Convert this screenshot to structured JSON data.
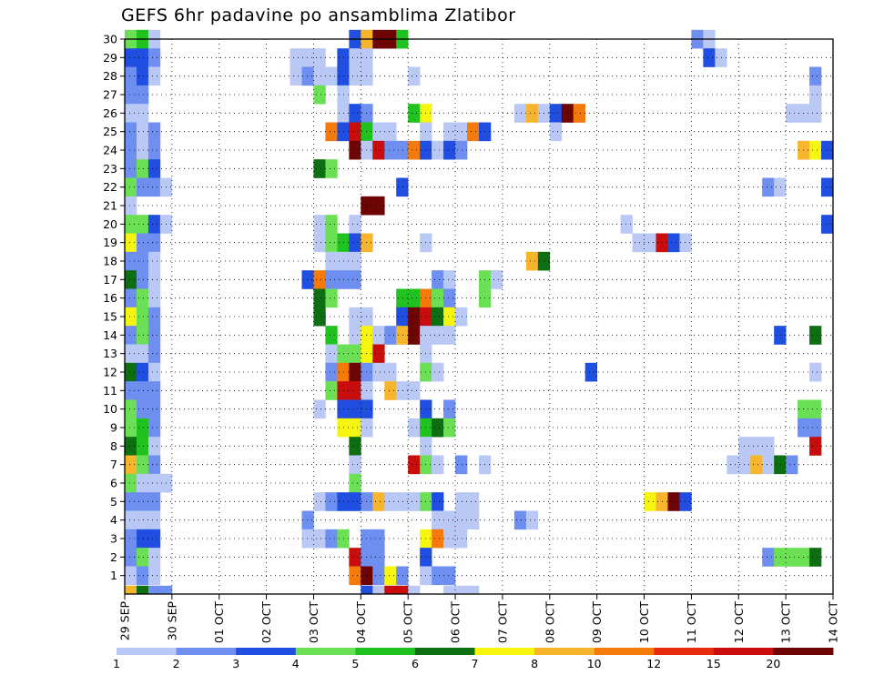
{
  "chart_data": {
    "type": "heatmap",
    "title": "GEFS 6hr padavine po ansamblima Zlatibor",
    "xlabel": "",
    "ylabel": "",
    "x_ticks": [
      "29 SEP",
      "30 SEP",
      "01 OCT",
      "02 OCT",
      "03 OCT",
      "04 OCT",
      "05 OCT",
      "06 OCT",
      "07 OCT",
      "08 OCT",
      "09 OCT",
      "10 OCT",
      "11 OCT",
      "12 OCT",
      "13 OCT",
      "14 OCT"
    ],
    "y_ticks": [
      1,
      2,
      3,
      4,
      5,
      6,
      7,
      8,
      9,
      10,
      11,
      12,
      13,
      14,
      15,
      16,
      17,
      18,
      19,
      20,
      21,
      22,
      23,
      24,
      25,
      26,
      27,
      28,
      29,
      30
    ],
    "ylim": [
      0,
      30
    ],
    "time_step_hours": 6,
    "grid": true,
    "legend_placement": "bottom",
    "colorbar": {
      "labels": [
        "1",
        "2",
        "3",
        "4",
        "5",
        "6",
        "7",
        "8",
        "10",
        "12",
        "15",
        "20"
      ],
      "colors": [
        "#b9c8f5",
        "#6e8ff0",
        "#1f4ee0",
        "#6ce055",
        "#1fc21f",
        "#0d6e12",
        "#f5f50f",
        "#f7b52e",
        "#f57a0c",
        "#e62d10",
        "#c90d0d",
        "#6e0505"
      ]
    },
    "cells": [
      [
        0,
        30,
        4
      ],
      [
        0,
        29,
        3
      ],
      [
        0,
        28,
        2
      ],
      [
        0,
        27,
        2
      ],
      [
        0,
        26,
        1
      ],
      [
        0,
        25,
        2
      ],
      [
        0,
        24,
        2
      ],
      [
        0,
        23,
        2
      ],
      [
        0,
        22,
        4
      ],
      [
        0,
        21,
        1
      ],
      [
        0,
        20,
        4
      ],
      [
        0,
        19,
        7
      ],
      [
        0,
        18,
        2
      ],
      [
        0,
        17,
        6
      ],
      [
        0,
        16,
        2
      ],
      [
        0,
        15,
        7
      ],
      [
        0,
        14,
        2
      ],
      [
        0,
        13,
        1
      ],
      [
        0,
        12,
        6
      ],
      [
        0,
        11,
        2
      ],
      [
        0,
        10,
        4
      ],
      [
        0,
        9,
        4
      ],
      [
        0,
        8,
        6
      ],
      [
        0,
        7,
        8
      ],
      [
        0,
        6,
        4
      ],
      [
        0,
        5,
        2
      ],
      [
        0,
        4,
        1
      ],
      [
        0,
        3,
        2
      ],
      [
        0,
        2,
        2
      ],
      [
        0,
        1,
        1
      ],
      [
        0,
        0,
        8
      ],
      [
        1,
        30,
        5
      ],
      [
        1,
        29,
        3
      ],
      [
        1,
        28,
        3
      ],
      [
        1,
        27,
        2
      ],
      [
        1,
        26,
        1
      ],
      [
        1,
        25,
        1
      ],
      [
        1,
        24,
        1
      ],
      [
        1,
        23,
        4
      ],
      [
        1,
        22,
        2
      ],
      [
        1,
        20,
        4
      ],
      [
        1,
        19,
        2
      ],
      [
        1,
        18,
        2
      ],
      [
        1,
        17,
        2
      ],
      [
        1,
        16,
        4
      ],
      [
        1,
        15,
        4
      ],
      [
        1,
        14,
        4
      ],
      [
        1,
        13,
        1
      ],
      [
        1,
        12,
        3
      ],
      [
        1,
        11,
        2
      ],
      [
        1,
        10,
        2
      ],
      [
        1,
        9,
        5
      ],
      [
        1,
        8,
        5
      ],
      [
        1,
        7,
        4
      ],
      [
        1,
        6,
        1
      ],
      [
        1,
        5,
        2
      ],
      [
        1,
        4,
        1
      ],
      [
        1,
        3,
        3
      ],
      [
        1,
        2,
        4
      ],
      [
        1,
        1,
        2
      ],
      [
        1,
        0,
        6
      ],
      [
        2,
        30,
        1
      ],
      [
        2,
        29,
        2
      ],
      [
        2,
        28,
        1
      ],
      [
        2,
        25,
        2
      ],
      [
        2,
        24,
        2
      ],
      [
        2,
        23,
        3
      ],
      [
        2,
        22,
        2
      ],
      [
        2,
        20,
        3
      ],
      [
        2,
        19,
        2
      ],
      [
        2,
        18,
        1
      ],
      [
        2,
        17,
        1
      ],
      [
        2,
        16,
        1
      ],
      [
        2,
        15,
        2
      ],
      [
        2,
        14,
        2
      ],
      [
        2,
        13,
        2
      ],
      [
        2,
        12,
        1
      ],
      [
        2,
        11,
        2
      ],
      [
        2,
        10,
        2
      ],
      [
        2,
        9,
        2
      ],
      [
        2,
        8,
        1
      ],
      [
        2,
        7,
        2
      ],
      [
        2,
        6,
        1
      ],
      [
        2,
        5,
        2
      ],
      [
        2,
        4,
        1
      ],
      [
        2,
        3,
        3
      ],
      [
        2,
        2,
        1
      ],
      [
        2,
        1,
        1
      ],
      [
        2,
        0,
        2
      ],
      [
        3,
        22,
        1
      ],
      [
        3,
        20,
        1
      ],
      [
        3,
        6,
        1
      ],
      [
        3,
        0,
        2
      ],
      [
        14,
        29,
        1
      ],
      [
        14,
        28,
        1
      ],
      [
        15,
        29,
        1
      ],
      [
        15,
        28,
        2
      ],
      [
        15,
        17,
        3
      ],
      [
        15,
        4,
        2
      ],
      [
        15,
        3,
        1
      ],
      [
        16,
        29,
        1
      ],
      [
        16,
        28,
        1
      ],
      [
        16,
        27,
        4
      ],
      [
        16,
        23,
        6
      ],
      [
        16,
        20,
        1
      ],
      [
        16,
        19,
        1
      ],
      [
        16,
        17,
        9
      ],
      [
        16,
        16,
        6
      ],
      [
        16,
        15,
        6
      ],
      [
        16,
        10,
        1
      ],
      [
        16,
        5,
        1
      ],
      [
        16,
        3,
        1
      ],
      [
        17,
        28,
        1
      ],
      [
        17,
        25,
        9
      ],
      [
        17,
        23,
        4
      ],
      [
        17,
        20,
        4
      ],
      [
        17,
        19,
        4
      ],
      [
        17,
        18,
        1
      ],
      [
        17,
        17,
        2
      ],
      [
        17,
        16,
        4
      ],
      [
        17,
        14,
        5
      ],
      [
        17,
        13,
        1
      ],
      [
        17,
        12,
        2
      ],
      [
        17,
        11,
        4
      ],
      [
        17,
        5,
        2
      ],
      [
        17,
        3,
        2
      ],
      [
        18,
        29,
        3
      ],
      [
        18,
        28,
        3
      ],
      [
        18,
        27,
        1
      ],
      [
        18,
        26,
        1
      ],
      [
        18,
        25,
        3
      ],
      [
        18,
        19,
        5
      ],
      [
        18,
        18,
        1
      ],
      [
        18,
        17,
        2
      ],
      [
        18,
        13,
        4
      ],
      [
        18,
        12,
        9
      ],
      [
        18,
        11,
        11
      ],
      [
        18,
        10,
        3
      ],
      [
        18,
        9,
        7
      ],
      [
        18,
        5,
        3
      ],
      [
        18,
        3,
        4
      ],
      [
        19,
        30,
        3
      ],
      [
        19,
        29,
        1
      ],
      [
        19,
        28,
        1
      ],
      [
        19,
        26,
        3
      ],
      [
        19,
        25,
        11
      ],
      [
        19,
        24,
        12
      ],
      [
        19,
        20,
        1
      ],
      [
        19,
        19,
        3
      ],
      [
        19,
        18,
        1
      ],
      [
        19,
        17,
        2
      ],
      [
        19,
        15,
        1
      ],
      [
        19,
        14,
        1
      ],
      [
        19,
        13,
        4
      ],
      [
        19,
        12,
        12
      ],
      [
        19,
        11,
        11
      ],
      [
        19,
        10,
        3
      ],
      [
        19,
        9,
        7
      ],
      [
        19,
        8,
        6
      ],
      [
        19,
        7,
        1
      ],
      [
        19,
        6,
        4
      ],
      [
        19,
        5,
        3
      ],
      [
        19,
        2,
        11
      ],
      [
        19,
        1,
        9
      ],
      [
        20,
        30,
        8
      ],
      [
        20,
        29,
        1
      ],
      [
        20,
        28,
        1
      ],
      [
        20,
        26,
        2
      ],
      [
        20,
        25,
        5
      ],
      [
        20,
        24,
        1
      ],
      [
        20,
        21,
        12
      ],
      [
        20,
        19,
        8
      ],
      [
        20,
        15,
        1
      ],
      [
        20,
        14,
        7
      ],
      [
        20,
        13,
        7
      ],
      [
        20,
        12,
        2
      ],
      [
        20,
        11,
        1
      ],
      [
        20,
        10,
        3
      ],
      [
        20,
        9,
        1
      ],
      [
        20,
        5,
        2
      ],
      [
        20,
        3,
        2
      ],
      [
        20,
        2,
        2
      ],
      [
        20,
        1,
        12
      ],
      [
        20,
        0,
        3
      ],
      [
        21,
        30,
        12
      ],
      [
        21,
        25,
        1
      ],
      [
        21,
        24,
        11
      ],
      [
        21,
        21,
        12
      ],
      [
        21,
        14,
        1
      ],
      [
        21,
        13,
        11
      ],
      [
        21,
        12,
        1
      ],
      [
        21,
        5,
        8
      ],
      [
        21,
        3,
        2
      ],
      [
        21,
        2,
        2
      ],
      [
        21,
        1,
        2
      ],
      [
        21,
        0,
        1
      ],
      [
        22,
        30,
        12
      ],
      [
        22,
        25,
        1
      ],
      [
        22,
        24,
        2
      ],
      [
        22,
        14,
        2
      ],
      [
        22,
        12,
        1
      ],
      [
        22,
        11,
        8
      ],
      [
        22,
        5,
        1
      ],
      [
        22,
        1,
        7
      ],
      [
        22,
        0,
        11
      ],
      [
        23,
        30,
        5
      ],
      [
        23,
        24,
        2
      ],
      [
        23,
        22,
        3
      ],
      [
        23,
        16,
        5
      ],
      [
        23,
        15,
        3
      ],
      [
        23,
        14,
        8
      ],
      [
        23,
        11,
        1
      ],
      [
        23,
        5,
        1
      ],
      [
        23,
        1,
        2
      ],
      [
        23,
        0,
        11
      ],
      [
        24,
        28,
        1
      ],
      [
        24,
        26,
        5
      ],
      [
        24,
        24,
        9
      ],
      [
        24,
        16,
        5
      ],
      [
        24,
        15,
        12
      ],
      [
        24,
        14,
        12
      ],
      [
        24,
        11,
        1
      ],
      [
        24,
        9,
        1
      ],
      [
        24,
        7,
        11
      ],
      [
        24,
        5,
        1
      ],
      [
        24,
        0,
        1
      ],
      [
        25,
        26,
        7
      ],
      [
        25,
        25,
        1
      ],
      [
        25,
        24,
        3
      ],
      [
        25,
        19,
        1
      ],
      [
        25,
        16,
        9
      ],
      [
        25,
        15,
        11
      ],
      [
        25,
        14,
        1
      ],
      [
        25,
        13,
        1
      ],
      [
        25,
        12,
        4
      ],
      [
        25,
        10,
        3
      ],
      [
        25,
        9,
        5
      ],
      [
        25,
        8,
        1
      ],
      [
        25,
        7,
        4
      ],
      [
        25,
        5,
        4
      ],
      [
        25,
        3,
        7
      ],
      [
        25,
        2,
        3
      ],
      [
        25,
        1,
        1
      ],
      [
        26,
        24,
        1
      ],
      [
        26,
        17,
        2
      ],
      [
        26,
        16,
        4
      ],
      [
        26,
        15,
        6
      ],
      [
        26,
        14,
        1
      ],
      [
        26,
        12,
        1
      ],
      [
        26,
        9,
        6
      ],
      [
        26,
        7,
        1
      ],
      [
        26,
        5,
        3
      ],
      [
        26,
        4,
        1
      ],
      [
        26,
        3,
        9
      ],
      [
        26,
        1,
        2
      ],
      [
        27,
        25,
        1
      ],
      [
        27,
        24,
        3
      ],
      [
        27,
        17,
        1
      ],
      [
        27,
        16,
        2
      ],
      [
        27,
        15,
        7
      ],
      [
        27,
        14,
        1
      ],
      [
        27,
        10,
        2
      ],
      [
        27,
        9,
        4
      ],
      [
        27,
        4,
        1
      ],
      [
        27,
        3,
        1
      ],
      [
        27,
        1,
        2
      ],
      [
        27,
        0,
        1
      ],
      [
        28,
        25,
        1
      ],
      [
        28,
        24,
        2
      ],
      [
        28,
        15,
        1
      ],
      [
        28,
        7,
        2
      ],
      [
        28,
        5,
        1
      ],
      [
        28,
        4,
        1
      ],
      [
        28,
        3,
        1
      ],
      [
        28,
        0,
        1
      ],
      [
        29,
        25,
        9
      ],
      [
        29,
        5,
        1
      ],
      [
        29,
        4,
        1
      ],
      [
        29,
        0,
        1
      ],
      [
        30,
        25,
        3
      ],
      [
        30,
        17,
        4
      ],
      [
        30,
        16,
        4
      ],
      [
        30,
        7,
        1
      ],
      [
        31,
        17,
        1
      ],
      [
        33,
        26,
        1
      ],
      [
        33,
        4,
        2
      ],
      [
        34,
        26,
        8
      ],
      [
        34,
        18,
        8
      ],
      [
        34,
        4,
        1
      ],
      [
        35,
        26,
        1
      ],
      [
        35,
        18,
        6
      ],
      [
        36,
        26,
        3
      ],
      [
        36,
        25,
        1
      ],
      [
        37,
        26,
        12
      ],
      [
        38,
        26,
        9
      ],
      [
        39,
        12,
        3
      ],
      [
        42,
        20,
        1
      ],
      [
        43,
        19,
        1
      ],
      [
        44,
        19,
        1
      ],
      [
        44,
        5,
        7
      ],
      [
        45,
        19,
        11
      ],
      [
        45,
        5,
        8
      ],
      [
        46,
        19,
        3
      ],
      [
        46,
        5,
        12
      ],
      [
        47,
        19,
        1
      ],
      [
        47,
        5,
        3
      ],
      [
        48,
        30,
        2
      ],
      [
        49,
        30,
        1
      ],
      [
        49,
        29,
        3
      ],
      [
        50,
        29,
        1
      ],
      [
        51,
        7,
        1
      ],
      [
        52,
        8,
        1
      ],
      [
        52,
        7,
        1
      ],
      [
        53,
        8,
        1
      ],
      [
        53,
        7,
        8
      ],
      [
        54,
        22,
        2
      ],
      [
        54,
        8,
        1
      ],
      [
        54,
        7,
        1
      ],
      [
        54,
        2,
        2
      ],
      [
        55,
        22,
        1
      ],
      [
        55,
        14,
        3
      ],
      [
        55,
        7,
        6
      ],
      [
        55,
        2,
        4
      ],
      [
        56,
        26,
        1
      ],
      [
        56,
        7,
        2
      ],
      [
        56,
        2,
        4
      ],
      [
        57,
        26,
        1
      ],
      [
        57,
        24,
        8
      ],
      [
        57,
        10,
        4
      ],
      [
        57,
        9,
        2
      ],
      [
        57,
        2,
        4
      ],
      [
        58,
        28,
        2
      ],
      [
        58,
        27,
        1
      ],
      [
        58,
        26,
        1
      ],
      [
        58,
        24,
        7
      ],
      [
        58,
        14,
        6
      ],
      [
        58,
        12,
        1
      ],
      [
        58,
        10,
        4
      ],
      [
        58,
        9,
        2
      ],
      [
        58,
        8,
        11
      ],
      [
        58,
        2,
        6
      ],
      [
        59,
        24,
        3
      ],
      [
        59,
        22,
        3
      ],
      [
        59,
        20,
        3
      ]
    ]
  }
}
